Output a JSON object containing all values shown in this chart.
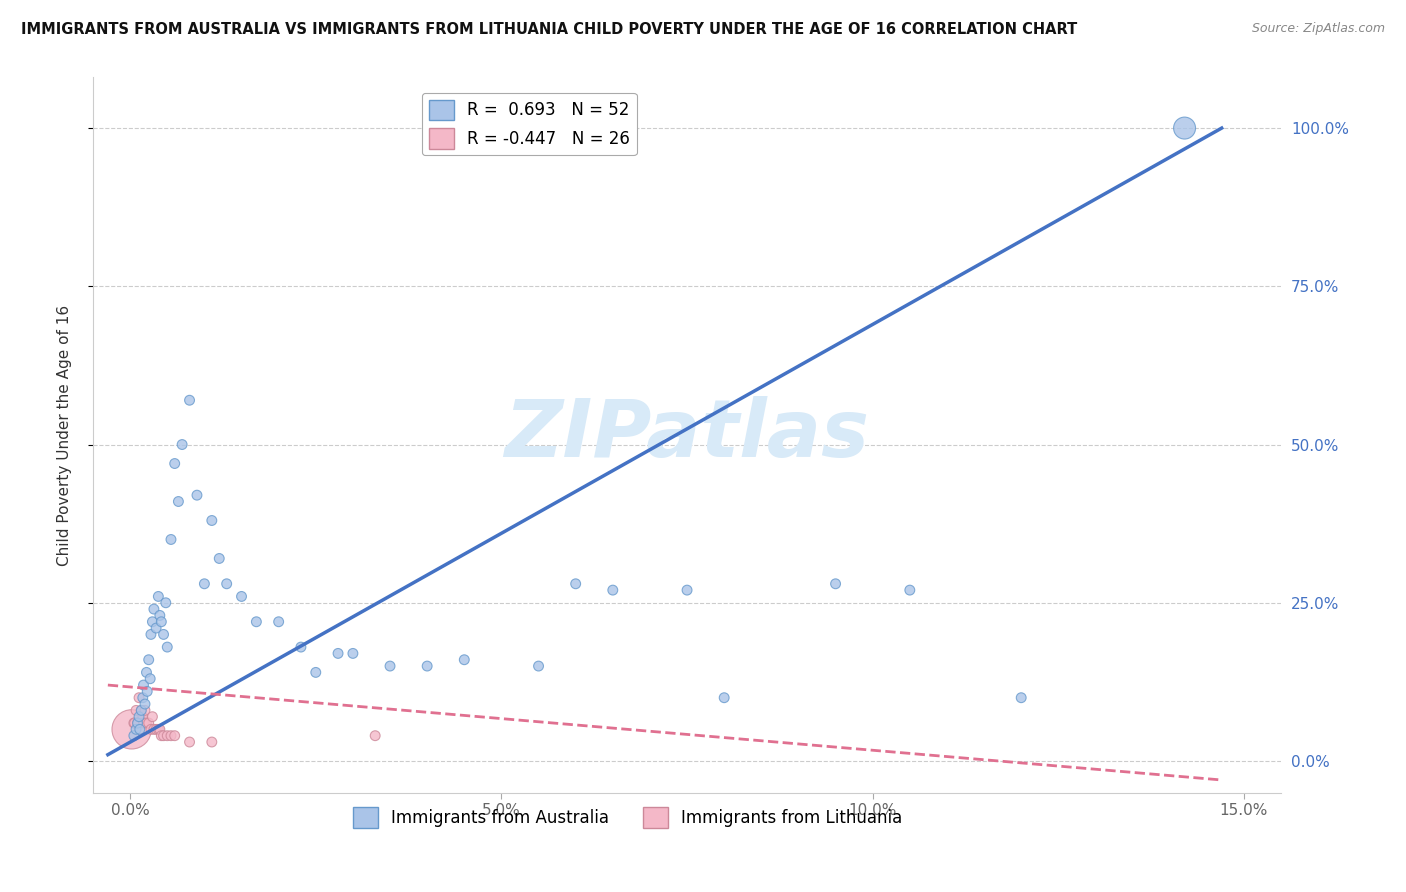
{
  "title": "IMMIGRANTS FROM AUSTRALIA VS IMMIGRANTS FROM LITHUANIA CHILD POVERTY UNDER THE AGE OF 16 CORRELATION CHART",
  "source": "Source: ZipAtlas.com",
  "ylabel_label": "Child Poverty Under the Age of 16",
  "australia_R": 0.693,
  "australia_N": 52,
  "lithuania_R": -0.447,
  "lithuania_N": 26,
  "australia_color": "#aac4e8",
  "australia_edge": "#6699cc",
  "australia_line_color": "#4472c4",
  "lithuania_color": "#f4b8c8",
  "lithuania_edge": "#cc8899",
  "lithuania_line_color": "#e07090",
  "watermark": "ZIPatlas",
  "watermark_color": "#d8eaf8",
  "background_color": "#ffffff",
  "australia_x": [
    0.05,
    0.08,
    0.1,
    0.12,
    0.13,
    0.15,
    0.17,
    0.18,
    0.2,
    0.22,
    0.23,
    0.25,
    0.27,
    0.28,
    0.3,
    0.32,
    0.35,
    0.38,
    0.4,
    0.42,
    0.45,
    0.48,
    0.5,
    0.55,
    0.6,
    0.65,
    0.7,
    0.8,
    0.9,
    1.0,
    1.1,
    1.2,
    1.3,
    1.5,
    1.7,
    2.0,
    2.3,
    2.5,
    2.8,
    3.0,
    3.5,
    4.0,
    4.5,
    5.5,
    6.0,
    6.5,
    7.5,
    8.0,
    9.5,
    10.5,
    12.0,
    14.2
  ],
  "australia_y": [
    4.0,
    5.0,
    6.0,
    7.0,
    5.0,
    8.0,
    10.0,
    12.0,
    9.0,
    14.0,
    11.0,
    16.0,
    13.0,
    20.0,
    22.0,
    24.0,
    21.0,
    26.0,
    23.0,
    22.0,
    20.0,
    25.0,
    18.0,
    35.0,
    47.0,
    41.0,
    50.0,
    57.0,
    42.0,
    28.0,
    38.0,
    32.0,
    28.0,
    26.0,
    22.0,
    22.0,
    18.0,
    14.0,
    17.0,
    17.0,
    15.0,
    15.0,
    16.0,
    15.0,
    28.0,
    27.0,
    27.0,
    10.0,
    28.0,
    27.0,
    10.0,
    100.0
  ],
  "australia_sizes": [
    50,
    50,
    50,
    50,
    50,
    50,
    50,
    50,
    50,
    50,
    50,
    50,
    50,
    50,
    50,
    50,
    50,
    50,
    50,
    50,
    50,
    50,
    50,
    50,
    50,
    50,
    50,
    50,
    50,
    50,
    50,
    50,
    50,
    50,
    50,
    50,
    50,
    50,
    50,
    50,
    50,
    50,
    50,
    50,
    50,
    50,
    50,
    50,
    50,
    50,
    50,
    250
  ],
  "lithuania_x": [
    0.02,
    0.05,
    0.06,
    0.08,
    0.1,
    0.12,
    0.15,
    0.17,
    0.18,
    0.2,
    0.22,
    0.25,
    0.28,
    0.3,
    0.32,
    0.35,
    0.38,
    0.4,
    0.42,
    0.45,
    0.5,
    0.55,
    0.6,
    0.8,
    1.1,
    3.3
  ],
  "lithuania_y": [
    5.0,
    6.0,
    6.0,
    8.0,
    6.0,
    10.0,
    8.0,
    7.0,
    6.0,
    8.0,
    6.0,
    6.0,
    5.0,
    7.0,
    5.0,
    5.0,
    5.0,
    5.0,
    4.0,
    4.0,
    4.0,
    4.0,
    4.0,
    3.0,
    3.0,
    4.0
  ],
  "lithuania_sizes": [
    800,
    50,
    50,
    50,
    50,
    50,
    50,
    50,
    50,
    50,
    50,
    50,
    50,
    50,
    50,
    50,
    50,
    50,
    50,
    50,
    50,
    50,
    50,
    50,
    50,
    50
  ],
  "aus_line_x": [
    -0.3,
    14.7
  ],
  "aus_line_y": [
    1.0,
    100.0
  ],
  "lit_line_x": [
    -0.3,
    14.7
  ],
  "lit_line_y": [
    12.0,
    -3.0
  ],
  "xlabel_vals": [
    0.0,
    5.0,
    10.0,
    15.0
  ],
  "ylabel_vals": [
    0.0,
    25.0,
    50.0,
    75.0,
    100.0
  ],
  "xlim": [
    -0.5,
    15.5
  ],
  "ylim": [
    -5.0,
    108.0
  ]
}
